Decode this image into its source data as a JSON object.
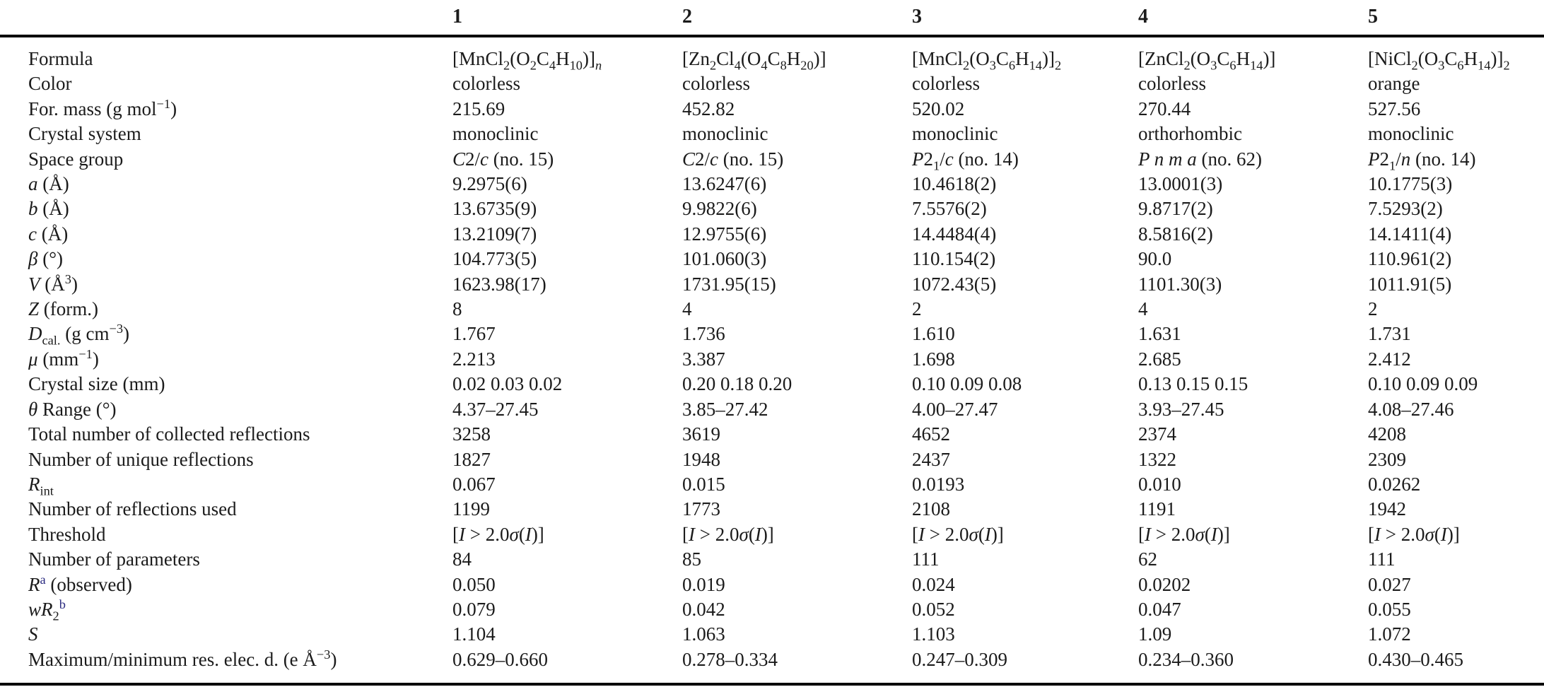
{
  "colors": {
    "text": "#1b1b1b",
    "rule": "#000000",
    "footnote_marker": "#2a2a80",
    "background": "#ffffff"
  },
  "table": {
    "name": "crystallographic-data-table",
    "columns": [
      "",
      "1",
      "2",
      "3",
      "4",
      "5"
    ],
    "rows": [
      {
        "label": "Formula",
        "values": [
          "[MnCl<sub>2</sub>(O<sub>2</sub>C<sub>4</sub>H<sub>10</sub>)]<sub><i>n</i></sub>",
          "[Zn<sub>2</sub>Cl<sub>4</sub>(O<sub>4</sub>C<sub>8</sub>H<sub>20</sub>)]",
          "[MnCl<sub>2</sub>(O<sub>3</sub>C<sub>6</sub>H<sub>14</sub>)]<sub>2</sub>",
          "[ZnCl<sub>2</sub>(O<sub>3</sub>C<sub>6</sub>H<sub>14</sub>)]",
          "[NiCl<sub>2</sub>(O<sub>3</sub>C<sub>6</sub>H<sub>14</sub>)]<sub>2</sub>"
        ]
      },
      {
        "label": "Color",
        "values": [
          "colorless",
          "colorless",
          "colorless",
          "colorless",
          "orange"
        ]
      },
      {
        "label": "For. mass (g mol<sup>−1</sup>)",
        "values": [
          "215.69",
          "452.82",
          "520.02",
          "270.44",
          "527.56"
        ]
      },
      {
        "label": "Crystal system",
        "values": [
          "monoclinic",
          "monoclinic",
          "monoclinic",
          "orthorhombic",
          "monoclinic"
        ]
      },
      {
        "label": "Space group",
        "values": [
          "<i>C</i>2/<i>c</i> (no. 15)",
          "<i>C</i>2/<i>c</i> (no. 15)",
          "<i>P</i>2<sub>1</sub>/<i>c</i> (no. 14)",
          "<i>P n m a</i> (no. 62)",
          "<i>P</i>2<sub>1</sub>/<i>n</i> (no. 14)"
        ]
      },
      {
        "label": "<i>a</i> (Å)",
        "values": [
          "9.2975(6)",
          "13.6247(6)",
          "10.4618(2)",
          "13.0001(3)",
          "10.1775(3)"
        ]
      },
      {
        "label": "<i>b</i> (Å)",
        "values": [
          "13.6735(9)",
          "9.9822(6)",
          "7.5576(2)",
          "9.8717(2)",
          "7.5293(2)"
        ]
      },
      {
        "label": "<i>c</i> (Å)",
        "values": [
          "13.2109(7)",
          "12.9755(6)",
          "14.4484(4)",
          "8.5816(2)",
          "14.1411(4)"
        ]
      },
      {
        "label": "<i>β</i> (°)",
        "values": [
          "104.773(5)",
          "101.060(3)",
          "110.154(2)",
          "90.0",
          "110.961(2)"
        ]
      },
      {
        "label": "<i>V</i> (Å<sup>3</sup>)",
        "values": [
          "1623.98(17)",
          "1731.95(15)",
          "1072.43(5)",
          "1101.30(3)",
          "1011.91(5)"
        ]
      },
      {
        "label": "<i>Z</i> (form.)",
        "values": [
          "8",
          "4",
          "2",
          "4",
          "2"
        ]
      },
      {
        "label": "<i>D</i><sub>cal.</sub> (g cm<sup>−3</sup>)",
        "values": [
          "1.767",
          "1.736",
          "1.610",
          "1.631",
          "1.731"
        ]
      },
      {
        "label": "<i>μ</i> (mm<sup>−1</sup>)",
        "values": [
          "2.213",
          "3.387",
          "1.698",
          "2.685",
          "2.412"
        ]
      },
      {
        "label": "Crystal size (mm)",
        "values": [
          "0.02 0.03 0.02",
          "0.20 0.18 0.20",
          "0.10 0.09 0.08",
          "0.13 0.15 0.15",
          "0.10 0.09 0.09"
        ]
      },
      {
        "label": "<i>θ</i> Range (°)",
        "values": [
          "4.37–27.45",
          "3.85–27.42",
          "4.00–27.47",
          "3.93–27.45",
          "4.08–27.46"
        ]
      },
      {
        "label": "Total number of collected reflections",
        "values": [
          "3258",
          "3619",
          "4652",
          "2374",
          "4208"
        ]
      },
      {
        "label": "Number of unique reflections",
        "values": [
          "1827",
          "1948",
          "2437",
          "1322",
          "2309"
        ]
      },
      {
        "label": "<i>R</i><sub>int</sub>",
        "values": [
          "0.067",
          "0.015",
          "0.0193",
          "0.010",
          "0.0262"
        ]
      },
      {
        "label": "Number of reflections used",
        "values": [
          "1199",
          "1773",
          "2108",
          "1191",
          "1942"
        ]
      },
      {
        "label": "Threshold",
        "values": [
          "[<i>I</i> &gt; 2.0<i>σ</i>(<i>I</i>)]",
          "[<i>I</i> &gt; 2.0<i>σ</i>(<i>I</i>)]",
          "[<i>I</i> &gt; 2.0<i>σ</i>(<i>I</i>)]",
          "[<i>I</i> &gt; 2.0<i>σ</i>(<i>I</i>)]",
          "[<i>I</i> &gt; 2.0<i>σ</i>(<i>I</i>)]"
        ]
      },
      {
        "label": "Number of parameters",
        "values": [
          "84",
          "85",
          "111",
          "62",
          "111"
        ]
      },
      {
        "label": "<i>R</i><sup class='fn'>a</sup> (observed)",
        "values": [
          "0.050",
          "0.019",
          "0.024",
          "0.0202",
          "0.027"
        ]
      },
      {
        "label": "<i>wR</i><sub>2</sub><sup class='fn'>b</sup>",
        "values": [
          "0.079",
          "0.042",
          "0.052",
          "0.047",
          "0.055"
        ]
      },
      {
        "label": "<i>S</i>",
        "values": [
          "1.104",
          "1.063",
          "1.103",
          "1.09",
          "1.072"
        ]
      },
      {
        "label": "Maximum/minimum res. elec. d. (e Å<sup>−3</sup>)",
        "values": [
          "0.629–0.660",
          "0.278–0.334",
          "0.247–0.309",
          "0.234–0.360",
          "0.430–0.465"
        ]
      }
    ]
  }
}
